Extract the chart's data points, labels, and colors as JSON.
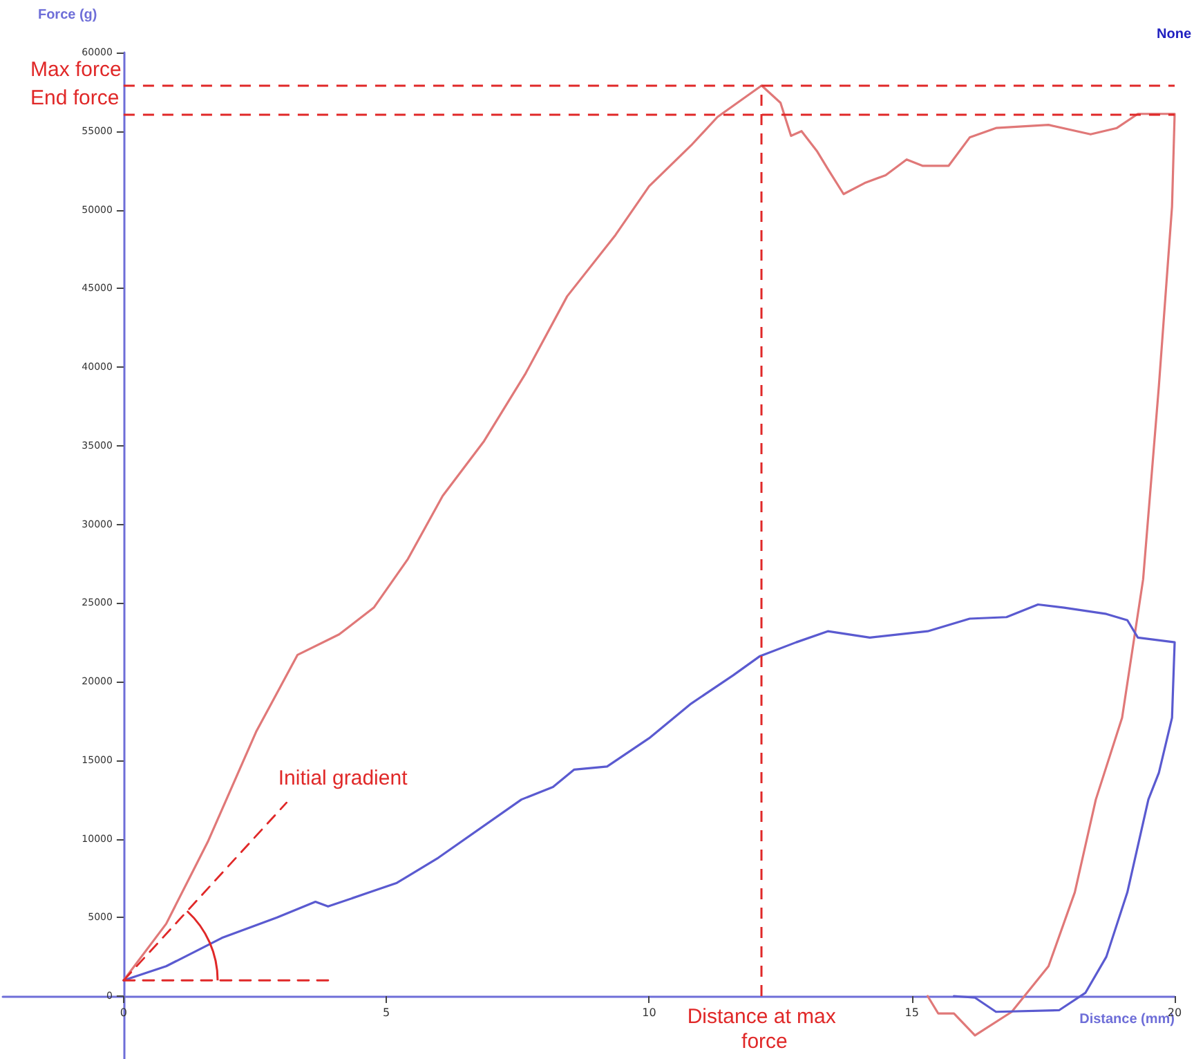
{
  "chart_data": {
    "type": "line",
    "xlabel": "Distance (mm)",
    "ylabel": "Force (g)",
    "xlim": [
      -2.3,
      20
    ],
    "xticks": [
      0,
      5,
      10,
      15,
      20
    ],
    "ylim": [
      -4000,
      60000
    ],
    "yticks": [
      0,
      5000,
      10000,
      15000,
      20000,
      25000,
      30000,
      35000,
      40000,
      45000,
      50000,
      55000,
      60000
    ],
    "marker": "none",
    "series": [
      {
        "color": "#e07878",
        "x": [
          0,
          0.81,
          1.6,
          2.52,
          3.31,
          4.1,
          4.76,
          5.41,
          6.07,
          6.86,
          7.65,
          8.44,
          9.36,
          10.0,
          10.8,
          11.3,
          12.14,
          12.5,
          12.7,
          12.9,
          13.2,
          13.4,
          13.7,
          14.1,
          14.5,
          14.9,
          15.2,
          15.7,
          16.1,
          16.6,
          17.6,
          18.4,
          18.9,
          19.3,
          20.0,
          19.95,
          19.7,
          19.4,
          19.0,
          18.5,
          18.1,
          17.6,
          16.9,
          16.2,
          15.8,
          15.5,
          15.3
        ],
        "values": [
          1000,
          4600,
          9800,
          16800,
          21700,
          23000,
          24700,
          27800,
          31800,
          35300,
          39600,
          44500,
          48400,
          51500,
          54100,
          55900,
          57900,
          56800,
          54700,
          55000,
          53700,
          52600,
          51000,
          51700,
          52200,
          53200,
          52800,
          52800,
          54600,
          55200,
          55400,
          54800,
          55200,
          56100,
          56100,
          50200,
          38800,
          26500,
          17700,
          12500,
          6600,
          1900,
          -1000,
          -2500,
          -1100,
          -1100,
          0
        ]
      },
      {
        "color": "#5a5ad0",
        "x": [
          0,
          0.81,
          1.87,
          2.92,
          3.65,
          3.89,
          4.68,
          5.2,
          5.99,
          7.57,
          8.17,
          8.57,
          9.2,
          10.0,
          10.8,
          11.6,
          12.1,
          12.8,
          13.4,
          14.2,
          15.3,
          16.1,
          16.8,
          17.4,
          17.9,
          18.7,
          19.1,
          19.3,
          20.0,
          19.95,
          19.7,
          19.5,
          19.1,
          18.7,
          18.3,
          17.8,
          16.6,
          16.2,
          15.8
        ],
        "values": [
          1000,
          1900,
          3700,
          5000,
          6000,
          5700,
          6600,
          7200,
          8800,
          12500,
          13300,
          14400,
          14600,
          16400,
          18600,
          20400,
          21600,
          22500,
          23200,
          22800,
          23200,
          24000,
          24100,
          24900,
          24700,
          24300,
          23900,
          22800,
          22500,
          17700,
          14200,
          12500,
          6600,
          2500,
          200,
          -900,
          -1000,
          -100,
          0
        ]
      },
      {
        "color": "#e02828",
        "line_style": "dashed",
        "x": [
          0,
          3.1
        ],
        "values": [
          1000,
          12300
        ]
      },
      {
        "color": "#e02828",
        "line_style": "dashed",
        "x": [
          0,
          3.9
        ],
        "values": [
          1000,
          1000
        ]
      }
    ],
    "ref_lines": [
      {
        "axis": "y",
        "value": 57900,
        "label": "Max force",
        "color": "#e02828",
        "line_style": "dashed"
      },
      {
        "axis": "y",
        "value": 56100,
        "label": "End force",
        "color": "#e02828",
        "line_style": "dashed"
      },
      {
        "axis": "x",
        "value": 12.14,
        "label": "Distance at max force",
        "color": "#e02828",
        "line_style": "dashed"
      }
    ],
    "annotations": [
      "None",
      {
        "text": "Initial gradient",
        "x": 3.1,
        "y": 12300
      }
    ]
  }
}
